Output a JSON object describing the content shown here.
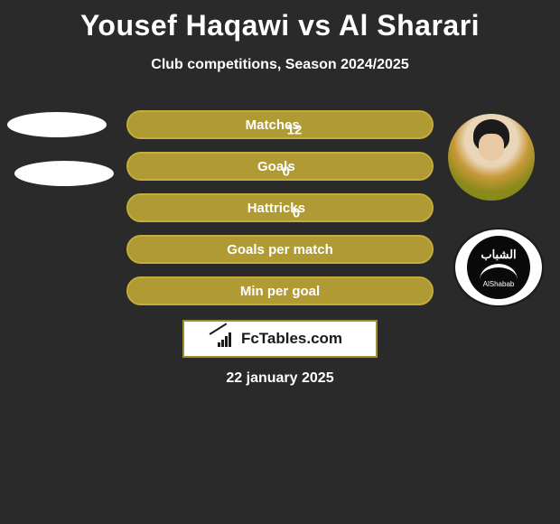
{
  "title": "Yousef Haqawi vs Al Sharari",
  "subtitle": "Club competitions, Season 2024/2025",
  "colors": {
    "background": "#2a2a2a",
    "bar_fill": "#a08d2e",
    "bar_border": "#c4ad3a",
    "text": "#ffffff",
    "brand_box_bg": "#ffffff",
    "brand_text": "#1a1a1a"
  },
  "stats": [
    {
      "label": "Matches",
      "value": "12"
    },
    {
      "label": "Goals",
      "value": "0"
    },
    {
      "label": "Hattricks",
      "value": "0"
    },
    {
      "label": "Goals per match",
      "value": ""
    },
    {
      "label": "Min per goal",
      "value": ""
    }
  ],
  "brand": "FcTables.com",
  "date": "22 january 2025",
  "avatars": {
    "left1_alt": "player-1-photo",
    "left2_alt": "club-1-logo",
    "right1_alt": "player-2-photo",
    "right2_alt": "club-2-logo",
    "right2_arabic": "الشباب",
    "right2_latin": "AlShabab"
  }
}
